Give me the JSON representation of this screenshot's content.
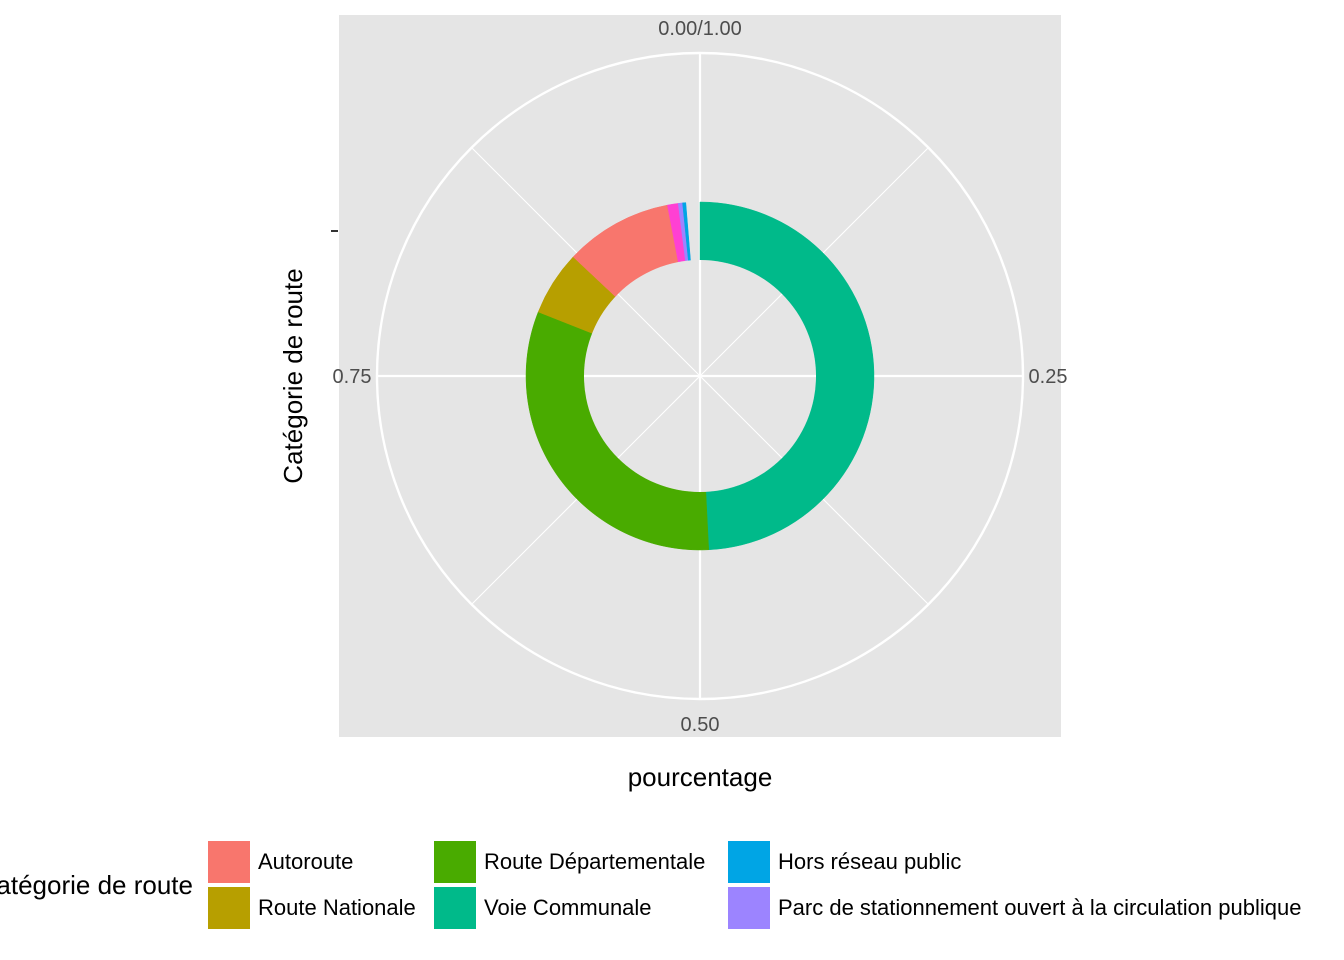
{
  "chart_data": {
    "type": "pie",
    "variant": "donut",
    "xlabel": "pourcentage",
    "ylabel": "Catégorie de route",
    "theta_ticks": [
      {
        "value": 0,
        "label": "0.00/1.00"
      },
      {
        "value": 0.25,
        "label": "0.25"
      },
      {
        "value": 0.5,
        "label": "0.50"
      },
      {
        "value": 0.75,
        "label": "0.75"
      }
    ],
    "grid": true,
    "legend": {
      "title": "Catégorie de route",
      "position": "bottom",
      "entries": [
        {
          "label": "Autoroute",
          "color": "#F8766D"
        },
        {
          "label": "Route Nationale",
          "color": "#B79F00"
        },
        {
          "label": "Route Départementale",
          "color": "#49AB00"
        },
        {
          "label": "Voie Communale",
          "color": "#00BA8A"
        },
        {
          "label": "Hors réseau public",
          "color": "#00A5E5"
        },
        {
          "label": "Parc de stationnement ouvert à la circulation publique",
          "color": "#9C84FF"
        }
      ]
    },
    "slices": [
      {
        "label": "Voie Communale",
        "value": 0.492,
        "color": "#00BA8A"
      },
      {
        "label": "Route Départementale",
        "value": 0.318,
        "color": "#49AB00"
      },
      {
        "label": "Route Nationale",
        "value": 0.06,
        "color": "#B79F00"
      },
      {
        "label": "Autoroute",
        "value": 0.1,
        "color": "#F8766D"
      },
      {
        "label": "",
        "value": 0.01,
        "color": "#FF40D3"
      },
      {
        "label": "Parc de stationnement ouvert à la circulation publique",
        "value": 0.004,
        "color": "#9C84FF"
      },
      {
        "label": "Hors réseau public",
        "value": 0.003,
        "color": "#00A5E5"
      }
    ]
  }
}
